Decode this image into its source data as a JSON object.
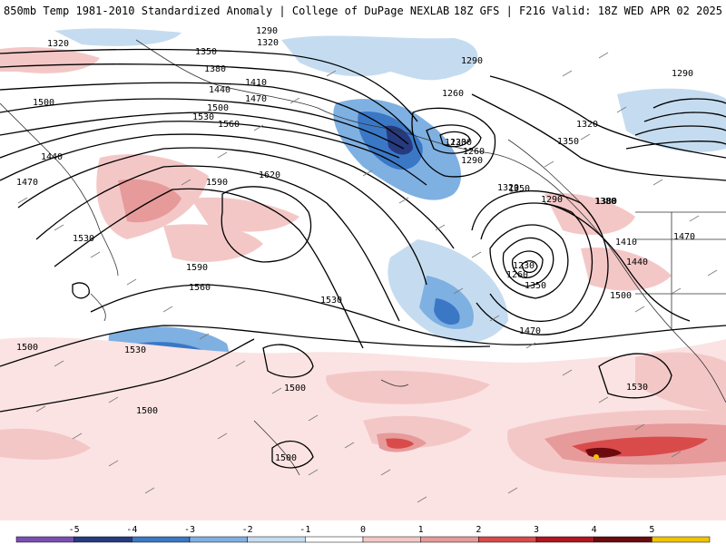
{
  "header": {
    "left_title": "850mb Temp 1981-2010 Standardized Anomaly | College of DuPage NEXLAB",
    "right_title": "18Z GFS | F216 Valid: 18Z WED APR 02 2025"
  },
  "colorbar": {
    "ticks": [
      "-5",
      "-4",
      "-3",
      "-2",
      "-1",
      "0",
      "1",
      "2",
      "3",
      "4",
      "5"
    ],
    "colors": [
      "#7a4fb5",
      "#273a80",
      "#3a78c6",
      "#7fb0e2",
      "#c5dcf0",
      "#ffffff",
      "#f4c7c7",
      "#e79a9a",
      "#d94b4b",
      "#b0161f",
      "#6b0a0f",
      "#f2c400"
    ]
  },
  "contour_labels": [
    "1290",
    "1320",
    "1350",
    "1380",
    "1410",
    "1440",
    "1470",
    "1500",
    "1530",
    "1560",
    "1590",
    "1620",
    "1260",
    "1230"
  ],
  "map_labels": [
    {
      "text": "1290"
    },
    {
      "text": "1320"
    },
    {
      "text": "1350"
    },
    {
      "text": "1380"
    },
    {
      "text": "1410"
    },
    {
      "text": "1440"
    },
    {
      "text": "1470"
    },
    {
      "text": "1500"
    },
    {
      "text": "1530"
    },
    {
      "text": "1560"
    },
    {
      "text": "1590"
    },
    {
      "text": "1620"
    },
    {
      "text": "1260"
    },
    {
      "text": "1230"
    },
    {
      "text": "1290"
    },
    {
      "text": "1320"
    },
    {
      "text": "1350"
    },
    {
      "text": "1380"
    },
    {
      "text": "1440"
    },
    {
      "text": "1470"
    },
    {
      "text": "1500"
    },
    {
      "text": "1530"
    },
    {
      "text": "1500"
    },
    {
      "text": "1500"
    },
    {
      "text": "1470"
    },
    {
      "text": "1530"
    },
    {
      "text": "1290"
    },
    {
      "text": "1320"
    },
    {
      "text": "1350"
    },
    {
      "text": "1230"
    },
    {
      "text": "1260"
    },
    {
      "text": "1290"
    },
    {
      "text": "1230"
    },
    {
      "text": "1260"
    },
    {
      "text": "1290"
    },
    {
      "text": "1320"
    },
    {
      "text": "1350"
    },
    {
      "text": "1380"
    },
    {
      "text": "1410"
    },
    {
      "text": "1440"
    },
    {
      "text": "1470"
    },
    {
      "text": "1500"
    },
    {
      "text": "1530"
    },
    {
      "text": "1560"
    },
    {
      "text": "1590"
    },
    {
      "text": "1500"
    },
    {
      "text": "1530"
    },
    {
      "text": "1500"
    }
  ]
}
